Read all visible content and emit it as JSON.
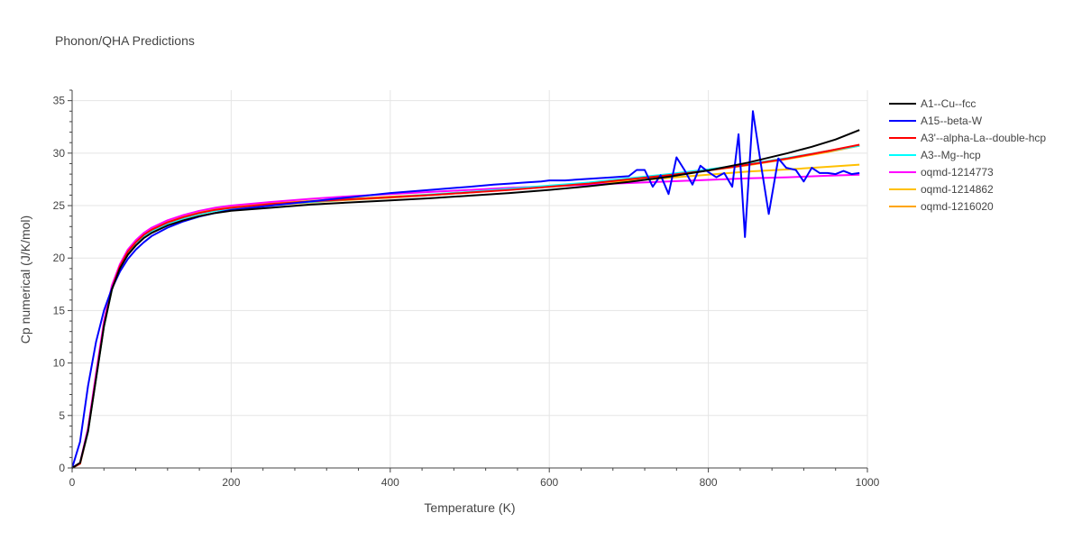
{
  "chart_data": {
    "type": "line",
    "title": "Phonon/QHA Predictions",
    "xlabel": "Temperature (K)",
    "ylabel": "Cp numerical (J/K/mol)",
    "xlim": [
      0,
      1000
    ],
    "ylim": [
      0,
      36
    ],
    "x_ticks": [
      0,
      200,
      400,
      600,
      800,
      1000
    ],
    "y_ticks": [
      0,
      5,
      10,
      15,
      20,
      25,
      30,
      35
    ],
    "grid": true,
    "legend_position": "right",
    "series": [
      {
        "name": "A1--Cu--fcc",
        "color": "#000000",
        "x": [
          0,
          10,
          20,
          30,
          40,
          50,
          60,
          70,
          80,
          90,
          100,
          120,
          140,
          160,
          180,
          200,
          250,
          300,
          350,
          400,
          450,
          500,
          550,
          600,
          650,
          700,
          750,
          800,
          850,
          900,
          930,
          960,
          990
        ],
        "y": [
          0,
          0.5,
          3.5,
          8.5,
          13.5,
          17.0,
          19.0,
          20.3,
          21.2,
          21.9,
          22.4,
          23.1,
          23.6,
          24.0,
          24.3,
          24.5,
          24.8,
          25.1,
          25.3,
          25.5,
          25.7,
          25.95,
          26.2,
          26.5,
          26.85,
          27.25,
          27.75,
          28.35,
          29.1,
          30.0,
          30.6,
          31.3,
          32.2
        ]
      },
      {
        "name": "A15--beta-W",
        "color": "#0000ff",
        "x": [
          0,
          10,
          20,
          30,
          40,
          50,
          60,
          70,
          80,
          90,
          100,
          120,
          140,
          160,
          180,
          200,
          250,
          300,
          350,
          400,
          450,
          500,
          530,
          550,
          570,
          590,
          600,
          620,
          640,
          660,
          680,
          700,
          710,
          720,
          730,
          740,
          750,
          760,
          770,
          780,
          790,
          800,
          810,
          820,
          830,
          838,
          846,
          856,
          866,
          876,
          888,
          898,
          910,
          920,
          930,
          940,
          950,
          960,
          970,
          980,
          990
        ],
        "y": [
          0,
          2.5,
          7.8,
          12.0,
          15.0,
          17.1,
          18.7,
          19.9,
          20.8,
          21.5,
          22.1,
          22.9,
          23.5,
          23.95,
          24.3,
          24.6,
          25.0,
          25.4,
          25.8,
          26.2,
          26.5,
          26.8,
          27.0,
          27.1,
          27.2,
          27.3,
          27.4,
          27.4,
          27.5,
          27.6,
          27.7,
          27.8,
          28.4,
          28.4,
          26.8,
          27.9,
          26.1,
          29.6,
          28.4,
          27.0,
          28.8,
          28.2,
          27.7,
          28.1,
          26.8,
          31.8,
          22.0,
          34.0,
          29.0,
          24.2,
          29.5,
          28.6,
          28.4,
          27.3,
          28.6,
          28.1,
          28.1,
          28.0,
          28.3,
          28.0,
          28.1
        ]
      },
      {
        "name": "A3'--alpha-La--double-hcp",
        "color": "#ff0000",
        "x": [
          0,
          10,
          20,
          30,
          40,
          50,
          60,
          70,
          80,
          90,
          100,
          120,
          140,
          160,
          180,
          200,
          250,
          300,
          350,
          400,
          450,
          500,
          550,
          600,
          650,
          700,
          750,
          800,
          850,
          900,
          950,
          990
        ],
        "y": [
          0,
          0.4,
          3.5,
          8.6,
          13.6,
          17.1,
          19.2,
          20.6,
          21.5,
          22.2,
          22.7,
          23.4,
          23.9,
          24.3,
          24.6,
          24.8,
          25.15,
          25.4,
          25.6,
          25.8,
          26.0,
          26.25,
          26.5,
          26.8,
          27.1,
          27.5,
          27.9,
          28.35,
          28.9,
          29.5,
          30.2,
          30.8
        ]
      },
      {
        "name": "A3--Mg--hcp",
        "color": "#00ffff",
        "x": [
          0,
          10,
          20,
          30,
          40,
          50,
          60,
          70,
          80,
          90,
          100,
          120,
          140,
          160,
          180,
          200,
          250,
          300,
          350,
          400,
          450,
          500,
          550,
          600,
          650,
          700,
          750,
          800,
          850,
          900,
          950,
          990
        ],
        "y": [
          0,
          0.4,
          3.4,
          8.5,
          13.5,
          17.0,
          19.1,
          20.5,
          21.4,
          22.1,
          22.6,
          23.3,
          23.8,
          24.2,
          24.5,
          24.7,
          25.1,
          25.35,
          25.6,
          25.8,
          26.05,
          26.3,
          26.6,
          26.9,
          27.2,
          27.6,
          28.0,
          28.45,
          28.95,
          29.55,
          30.2,
          30.7
        ]
      },
      {
        "name": "oqmd-1214773",
        "color": "#ff00ff",
        "x": [
          0,
          10,
          20,
          30,
          40,
          50,
          60,
          70,
          80,
          90,
          100,
          120,
          140,
          160,
          180,
          200,
          250,
          300,
          350,
          400,
          450,
          500,
          550,
          600,
          650,
          700,
          750,
          800,
          850,
          900,
          950,
          990
        ],
        "y": [
          0,
          0.5,
          3.8,
          9.0,
          14.0,
          17.4,
          19.4,
          20.8,
          21.7,
          22.4,
          22.9,
          23.6,
          24.1,
          24.5,
          24.8,
          25.0,
          25.35,
          25.65,
          25.9,
          26.1,
          26.3,
          26.5,
          26.7,
          26.85,
          27.0,
          27.15,
          27.3,
          27.45,
          27.6,
          27.7,
          27.85,
          27.95
        ]
      },
      {
        "name": "oqmd-1214862",
        "color": "#ffc000",
        "x": [
          0,
          10,
          20,
          30,
          40,
          50,
          60,
          70,
          80,
          90,
          100,
          120,
          140,
          160,
          180,
          200,
          250,
          300,
          350,
          400,
          450,
          500,
          550,
          600,
          650,
          700,
          750,
          800,
          850,
          900,
          950,
          990
        ],
        "y": [
          0,
          0.4,
          3.6,
          8.8,
          13.8,
          17.2,
          19.3,
          20.7,
          21.6,
          22.3,
          22.8,
          23.5,
          24.0,
          24.4,
          24.7,
          24.9,
          25.2,
          25.45,
          25.65,
          25.85,
          26.05,
          26.3,
          26.55,
          26.8,
          27.05,
          27.35,
          27.65,
          27.95,
          28.25,
          28.45,
          28.7,
          28.9
        ]
      },
      {
        "name": "oqmd-1216020",
        "color": "#ffa500",
        "x": [
          0,
          10,
          20,
          30,
          40,
          50,
          60,
          70,
          80,
          90,
          100,
          120,
          140,
          160,
          180,
          200,
          250,
          300,
          350,
          400,
          450,
          500,
          550,
          600,
          650,
          700,
          750,
          800,
          850,
          900,
          950,
          990
        ],
        "y": [
          0,
          0.4,
          3.4,
          8.5,
          13.5,
          17.0,
          19.1,
          20.5,
          21.4,
          22.1,
          22.6,
          23.3,
          23.8,
          24.2,
          24.5,
          24.7,
          25.05,
          25.3,
          25.55,
          25.75,
          26.0,
          26.25,
          26.55,
          26.85,
          27.15,
          27.5,
          27.9,
          28.35,
          28.85,
          29.45,
          30.1,
          30.7
        ]
      }
    ]
  }
}
